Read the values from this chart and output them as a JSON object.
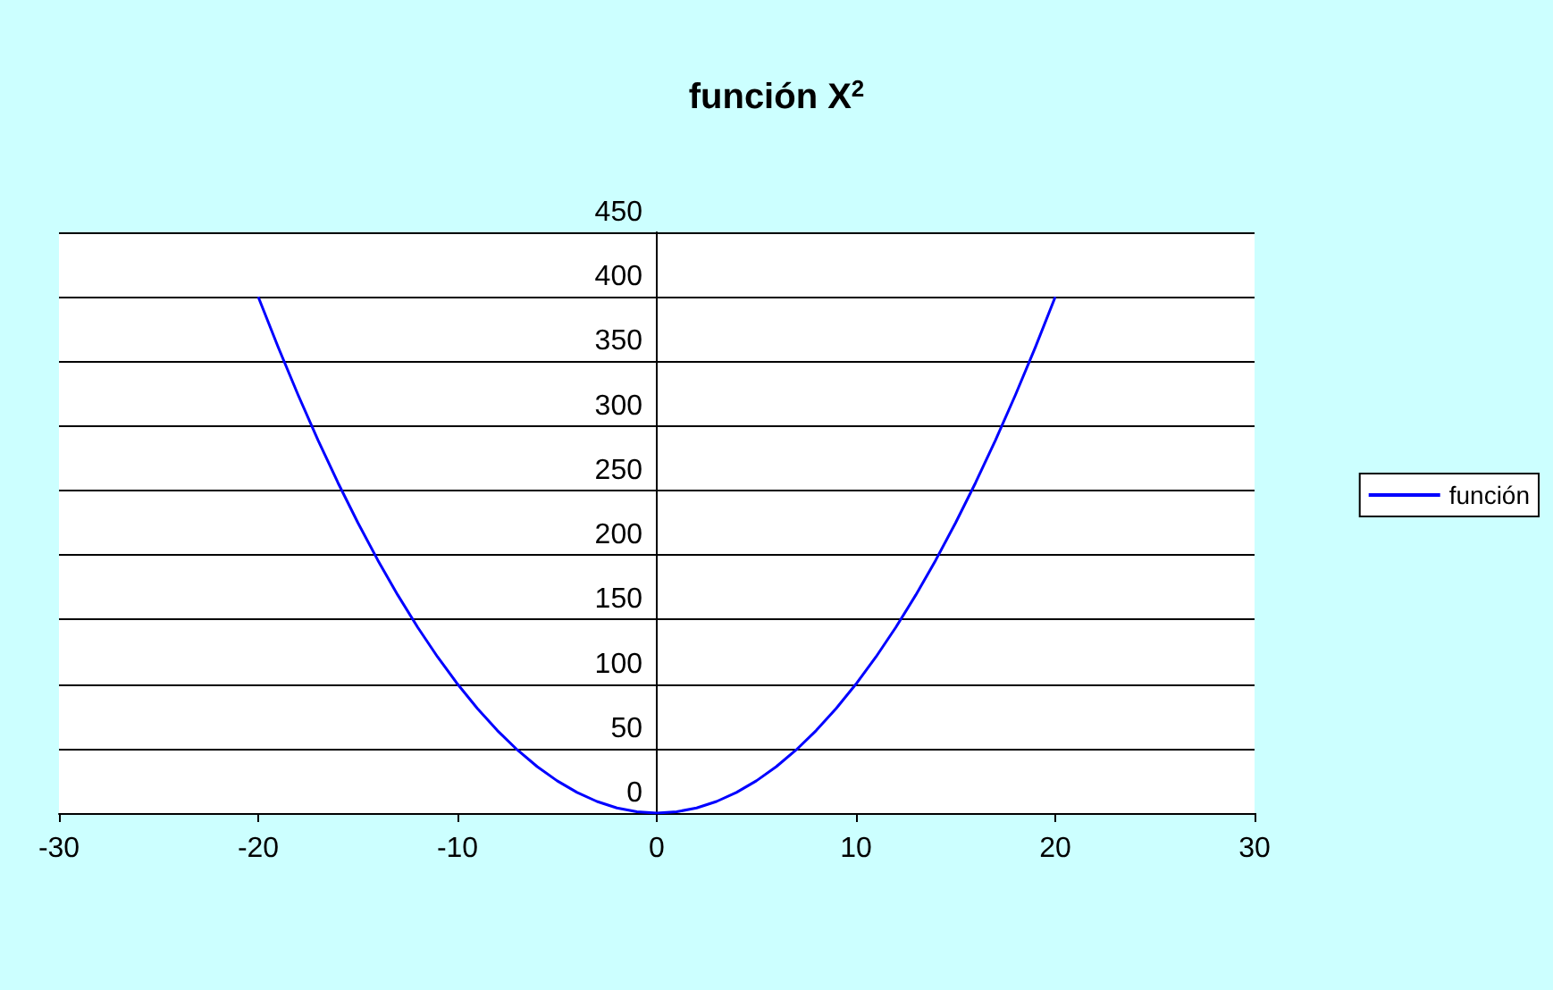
{
  "chart_data": {
    "type": "line",
    "title": "función X$^{2}$",
    "x": [
      -20,
      -19,
      -18,
      -17,
      -16,
      -15,
      -14,
      -13,
      -12,
      -11,
      -10,
      -9,
      -8,
      -7,
      -6,
      -5,
      -4,
      -3,
      -2,
      -1,
      0,
      1,
      2,
      3,
      4,
      5,
      6,
      7,
      8,
      9,
      10,
      11,
      12,
      13,
      14,
      15,
      16,
      17,
      18,
      19,
      20
    ],
    "series": [
      {
        "name": "función",
        "color": "#0000ff",
        "values": [
          400,
          361,
          324,
          289,
          256,
          225,
          196,
          169,
          144,
          121,
          100,
          81,
          64,
          49,
          36,
          25,
          16,
          9,
          4,
          1,
          0,
          1,
          4,
          9,
          16,
          25,
          36,
          49,
          64,
          81,
          100,
          121,
          144,
          169,
          196,
          225,
          256,
          289,
          324,
          361,
          400
        ]
      }
    ],
    "xlim": [
      -30,
      30
    ],
    "xticks": [
      -30,
      -20,
      -10,
      0,
      10,
      20,
      30
    ],
    "ylim": [
      0,
      450
    ],
    "yticks": [
      0,
      50,
      100,
      150,
      200,
      250,
      300,
      350,
      400,
      450
    ],
    "grid": "y",
    "legend": "right",
    "marker": "none",
    "line_style": "solid"
  }
}
